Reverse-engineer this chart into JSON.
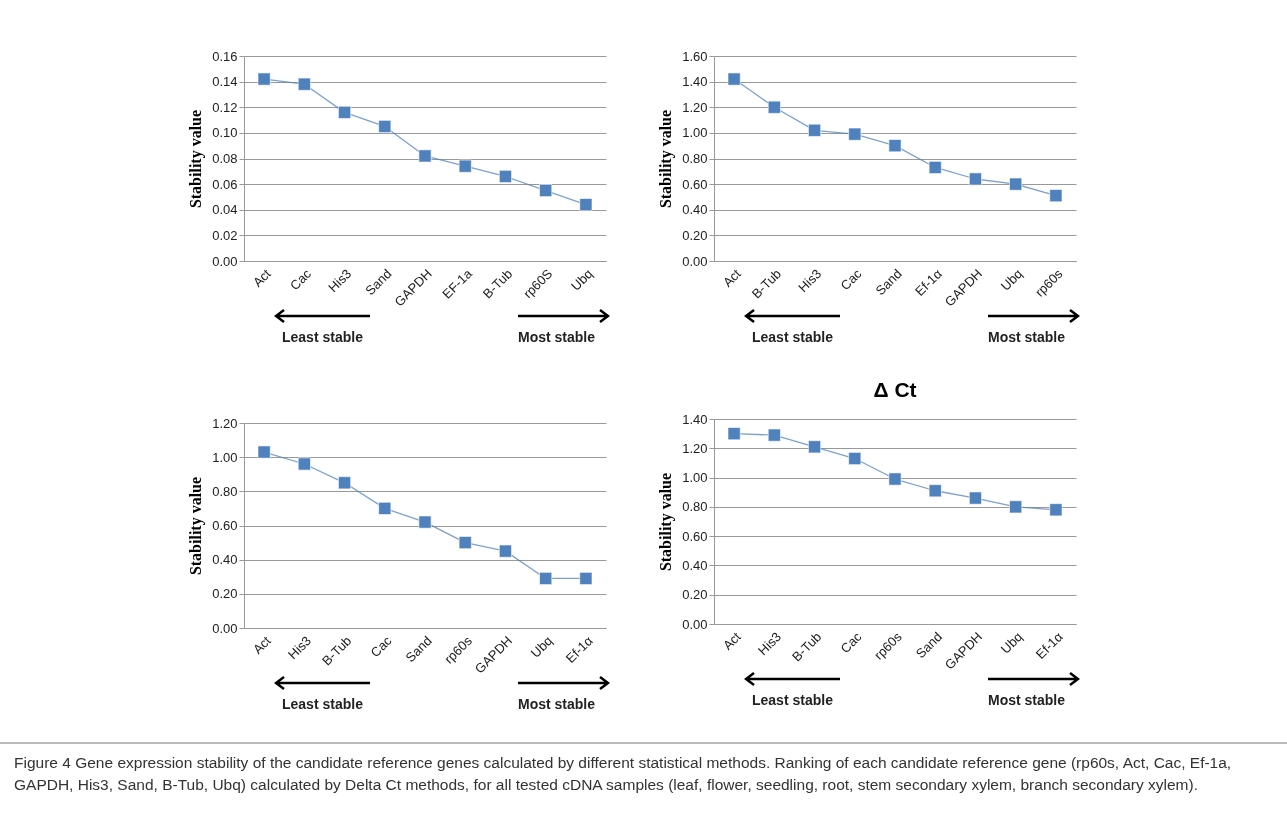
{
  "chart_data": [
    {
      "type": "line",
      "ylabel": "Stability value",
      "categories": [
        "Act",
        "Cac",
        "His3",
        "Sand",
        "GAPDH",
        "EF-1a",
        "B-Tub",
        "rp60S",
        "Ubq"
      ],
      "series": [
        {
          "color": "#4f81bd",
          "values": [
            0.142,
            0.138,
            0.116,
            0.105,
            0.082,
            0.074,
            0.066,
            0.055,
            0.044
          ]
        }
      ],
      "ylim": [
        0,
        0.16
      ],
      "yticks": [
        {
          "value": 0,
          "label": "0.00"
        },
        {
          "value": 0.02,
          "label": "0.02"
        },
        {
          "value": 0.04,
          "label": "0.04"
        },
        {
          "value": 0.06,
          "label": "0.06"
        },
        {
          "value": 0.08,
          "label": "0.08"
        },
        {
          "value": 0.1,
          "label": "0.10"
        },
        {
          "value": 0.12,
          "label": "0.12"
        },
        {
          "value": 0.14,
          "label": "0.14"
        },
        {
          "value": 0.16,
          "label": "0.16"
        }
      ],
      "grid": "y",
      "marker": "square",
      "annotations": [
        "Least stable",
        "Most stable"
      ]
    },
    {
      "type": "line",
      "ylabel": "Stability value",
      "categories": [
        "Act",
        "B-Tub",
        "His3",
        "Cac",
        "Sand",
        "Ef-1α",
        "GAPDH",
        "Ubq",
        "rp60s"
      ],
      "series": [
        {
          "color": "#4f81bd",
          "values": [
            1.42,
            1.2,
            1.02,
            0.99,
            0.9,
            0.73,
            0.64,
            0.6,
            0.51
          ]
        }
      ],
      "ylim": [
        0,
        1.6
      ],
      "yticks": [
        {
          "value": 0,
          "label": "0.00"
        },
        {
          "value": 0.2,
          "label": "0.20"
        },
        {
          "value": 0.4,
          "label": "0.40"
        },
        {
          "value": 0.6,
          "label": "0.60"
        },
        {
          "value": 0.8,
          "label": "0.80"
        },
        {
          "value": 1,
          "label": "1.00"
        },
        {
          "value": 1.2,
          "label": "1.20"
        },
        {
          "value": 1.4,
          "label": "1.40"
        },
        {
          "value": 1.6,
          "label": "1.60"
        }
      ],
      "grid": "y",
      "marker": "square",
      "annotations": [
        "Least stable",
        "Most stable"
      ]
    },
    {
      "type": "line",
      "ylabel": "Stability value",
      "categories": [
        "Act",
        "His3",
        "B-Tub",
        "Cac",
        "Sand",
        "rp60s",
        "GAPDH",
        "Ubq",
        "Ef-1α"
      ],
      "series": [
        {
          "color": "#4f81bd",
          "values": [
            1.03,
            0.96,
            0.85,
            0.7,
            0.62,
            0.5,
            0.45,
            0.29,
            0.29
          ]
        }
      ],
      "ylim": [
        0,
        1.2
      ],
      "yticks": [
        {
          "value": 0,
          "label": "0.00"
        },
        {
          "value": 0.2,
          "label": "0.20"
        },
        {
          "value": 0.4,
          "label": "0.40"
        },
        {
          "value": 0.6,
          "label": "0.60"
        },
        {
          "value": 0.8,
          "label": "0.80"
        },
        {
          "value": 1,
          "label": "1.00"
        },
        {
          "value": 1.2,
          "label": "1.20"
        }
      ],
      "grid": "y",
      "marker": "square",
      "annotations": [
        "Least stable",
        "Most stable"
      ]
    },
    {
      "type": "line",
      "title": "Δ Ct",
      "ylabel": "Stability value",
      "categories": [
        "Act",
        "His3",
        "B-Tub",
        "Cac",
        "rp60s",
        "Sand",
        "GAPDH",
        "Ubq",
        "Ef-1α"
      ],
      "series": [
        {
          "color": "#4f81bd",
          "values": [
            1.3,
            1.29,
            1.21,
            1.13,
            0.99,
            0.91,
            0.86,
            0.8,
            0.78
          ]
        }
      ],
      "ylim": [
        0,
        1.4
      ],
      "yticks": [
        {
          "value": 0,
          "label": "0.00"
        },
        {
          "value": 0.2,
          "label": "0.20"
        },
        {
          "value": 0.4,
          "label": "0.40"
        },
        {
          "value": 0.6,
          "label": "0.60"
        },
        {
          "value": 0.8,
          "label": "0.80"
        },
        {
          "value": 1,
          "label": "1.00"
        },
        {
          "value": 1.2,
          "label": "1.20"
        },
        {
          "value": 1.4,
          "label": "1.40"
        }
      ],
      "grid": "y",
      "marker": "square",
      "annotations": [
        "Least stable",
        "Most stable",
        "Figure 4 Gene expression stability of the candidate reference genes calculated by different statistical methods. Ranking of each candidate reference gene (rp60s, Act, Cac, Ef-1a, GAPDH, His3, Sand, B-Tub, Ubq) calculated by Delta Ct methods, for all tested cDNA samples (leaf, flower, seedling, root, stem secondary xylem, branch secondary xylem)."
      ]
    }
  ]
}
